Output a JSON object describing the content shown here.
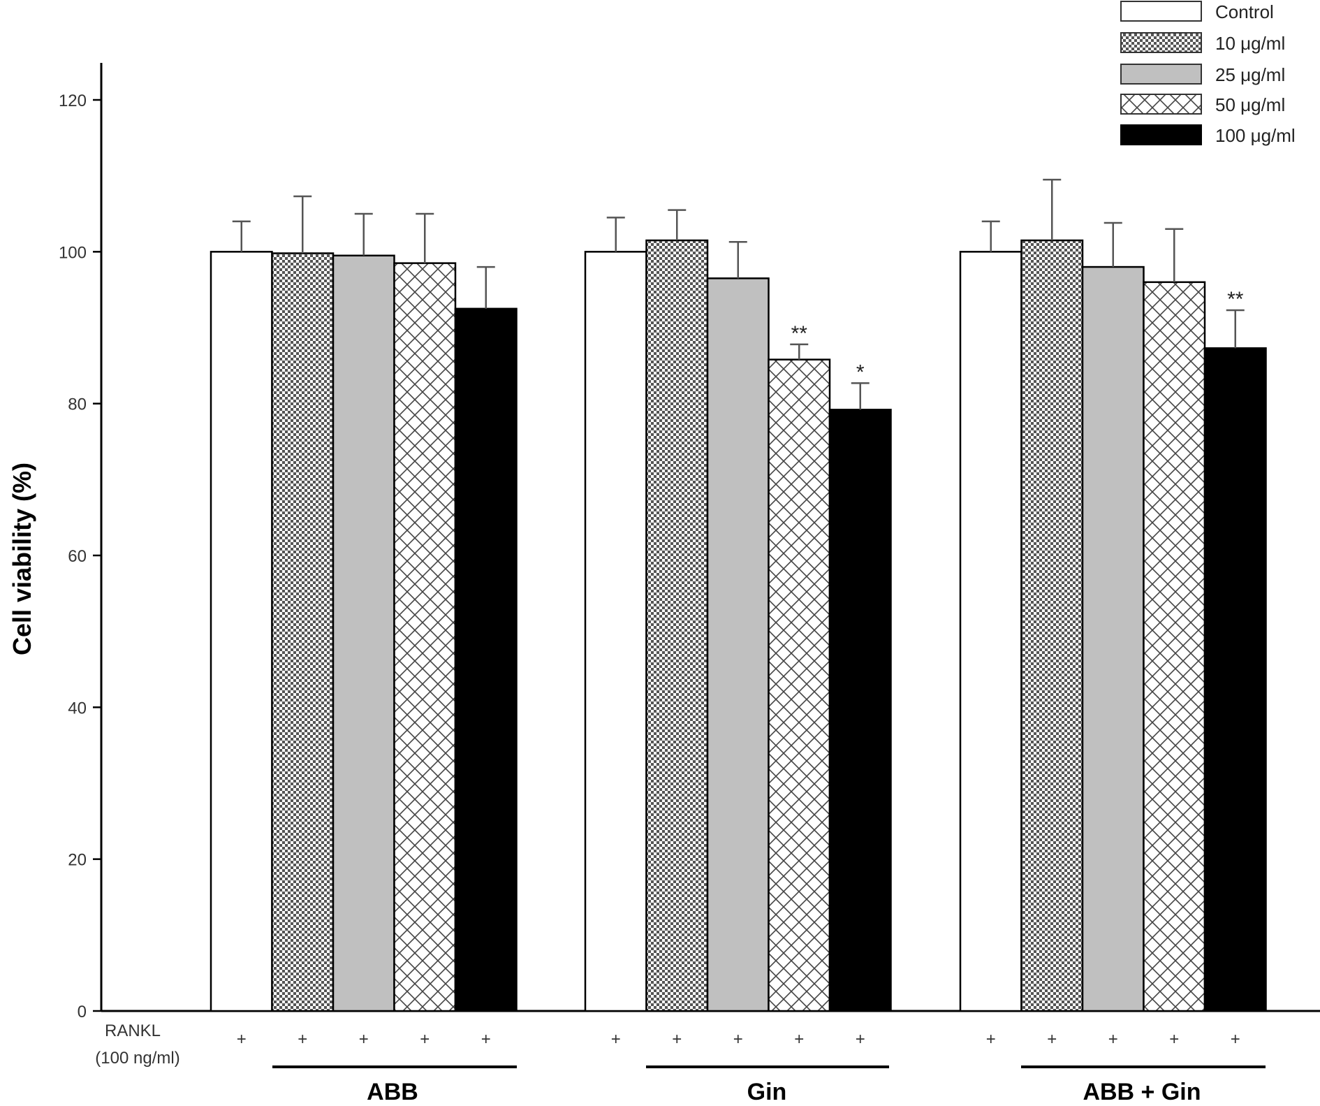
{
  "chart_data": {
    "type": "bar",
    "ylabel": "Cell viability (%)",
    "xlabel": "",
    "ylim": [
      0,
      120
    ],
    "yticks": [
      0,
      20,
      40,
      60,
      80,
      100,
      120
    ],
    "groups": [
      "ABB",
      "Gin",
      "ABB + Gin"
    ],
    "series": [
      {
        "name": "Control",
        "values": [
          100,
          100,
          100
        ],
        "errors": [
          4,
          4.5,
          4
        ],
        "pattern": "white"
      },
      {
        "name": "10 μg/ml",
        "values": [
          99.8,
          101.5,
          101.5
        ],
        "errors": [
          7.5,
          4,
          8
        ],
        "pattern": "checker"
      },
      {
        "name": "25 μg/ml",
        "values": [
          99.5,
          96.5,
          98
        ],
        "errors": [
          5.5,
          4.8,
          5.8
        ],
        "pattern": "gray"
      },
      {
        "name": "50 μg/ml",
        "values": [
          98.5,
          85.8,
          96
        ],
        "errors": [
          6.5,
          2,
          7
        ],
        "pattern": "crosshatch"
      },
      {
        "name": "100 μg/ml",
        "values": [
          92.5,
          79.2,
          87.3
        ],
        "errors": [
          5.5,
          3.5,
          5
        ],
        "pattern": "black"
      }
    ],
    "significance": [
      {
        "group": 1,
        "series": 3,
        "label": "**"
      },
      {
        "group": 1,
        "series": 4,
        "label": "*"
      },
      {
        "group": 2,
        "series": 4,
        "label": "**"
      }
    ],
    "rankl_label": [
      "RANKL",
      "(100 ng/ml)"
    ],
    "rankl_marker": "+",
    "legend_position": "top-right"
  }
}
